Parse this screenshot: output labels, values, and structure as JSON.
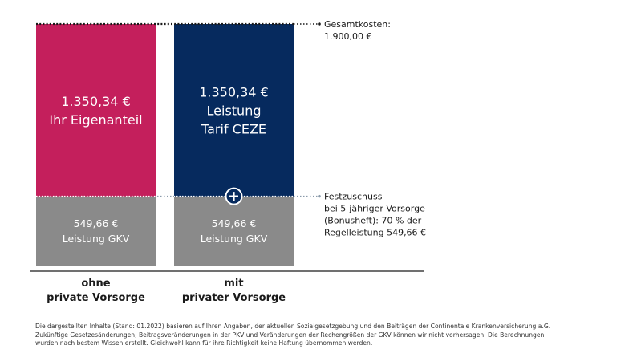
{
  "chart_data": {
    "type": "bar",
    "stacked": true,
    "categories": [
      [
        "ohne",
        "private Vorsorge"
      ],
      [
        "mit",
        "privater Vorsorge"
      ]
    ],
    "series": [
      {
        "name": "Leistung GKV",
        "color": "#8a8a8a",
        "values": [
          549.66,
          549.66
        ],
        "labels": [
          [
            "549,66 €",
            "Leistung GKV"
          ],
          [
            "549,66 €",
            "Leistung GKV"
          ]
        ]
      },
      {
        "name": "",
        "colors": [
          "#c41f5c",
          "#062a5e"
        ],
        "values": [
          1350.34,
          1350.34
        ],
        "labels": [
          [
            "1.350,34 €",
            "Ihr Eigenanteil"
          ],
          [
            "1.350,34 €",
            "Leistung",
            "Tarif CEZE"
          ]
        ]
      }
    ],
    "total": 1900.0,
    "annotations": [
      {
        "at_value": 1900.0,
        "lines": [
          "Gesamtkosten:",
          "1.900,00 €"
        ]
      },
      {
        "at_value": 549.66,
        "lines": [
          "Festzuschuss",
          "bei 5-jähriger Vorsorge",
          "(Bonusheft): 70 % der",
          "Regelleistung 549,66 €"
        ]
      }
    ],
    "ylim": [
      0,
      1900
    ],
    "grid": false,
    "marker_icon": "plus-circle-icon"
  },
  "footnote": [
    "Die dargestellten Inhalte (Stand: 01.2022) basieren auf Ihren Angaben, der aktuellen Sozialgesetzgebung und den Beiträgen der Continentale Krankenversicherung a.G.",
    "Zukünftige Gesetzesänderungen, Beitragsveränderungen in der PKV und Veränderungen der Rechengrößen der GKV können wir nicht vorhersagen. Die Berechnungen",
    "wurden nach bestem Wissen erstellt. Gleichwohl kann für ihre Richtigkeit keine Haftung übernommen werden."
  ]
}
